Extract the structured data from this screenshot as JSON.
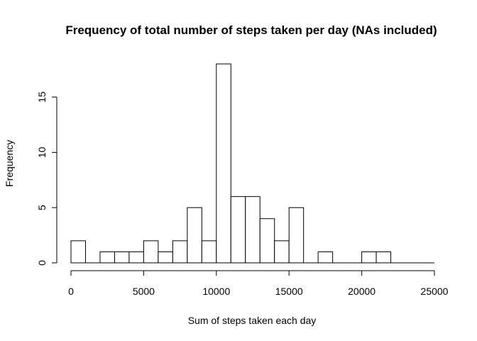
{
  "chart_data": {
    "type": "bar",
    "title": "Frequency of total number of steps taken per day (NAs included)",
    "xlabel": "Sum of steps taken each day",
    "ylabel": "Frequency",
    "xlim": [
      0,
      25000
    ],
    "ylim": [
      0,
      18
    ],
    "x_ticks": [
      0,
      5000,
      10000,
      15000,
      20000,
      25000
    ],
    "y_ticks": [
      0,
      5,
      10,
      15
    ],
    "bin_width": 1000,
    "bins": [
      {
        "x0": 0,
        "x1": 1000,
        "count": 2
      },
      {
        "x0": 1000,
        "x1": 2000,
        "count": 0
      },
      {
        "x0": 2000,
        "x1": 3000,
        "count": 1
      },
      {
        "x0": 3000,
        "x1": 4000,
        "count": 1
      },
      {
        "x0": 4000,
        "x1": 5000,
        "count": 1
      },
      {
        "x0": 5000,
        "x1": 6000,
        "count": 2
      },
      {
        "x0": 6000,
        "x1": 7000,
        "count": 1
      },
      {
        "x0": 7000,
        "x1": 8000,
        "count": 2
      },
      {
        "x0": 8000,
        "x1": 9000,
        "count": 5
      },
      {
        "x0": 9000,
        "x1": 10000,
        "count": 2
      },
      {
        "x0": 10000,
        "x1": 11000,
        "count": 18
      },
      {
        "x0": 11000,
        "x1": 12000,
        "count": 6
      },
      {
        "x0": 12000,
        "x1": 13000,
        "count": 6
      },
      {
        "x0": 13000,
        "x1": 14000,
        "count": 4
      },
      {
        "x0": 14000,
        "x1": 15000,
        "count": 2
      },
      {
        "x0": 15000,
        "x1": 16000,
        "count": 5
      },
      {
        "x0": 16000,
        "x1": 17000,
        "count": 0
      },
      {
        "x0": 17000,
        "x1": 18000,
        "count": 1
      },
      {
        "x0": 18000,
        "x1": 19000,
        "count": 0
      },
      {
        "x0": 19000,
        "x1": 20000,
        "count": 0
      },
      {
        "x0": 20000,
        "x1": 21000,
        "count": 1
      },
      {
        "x0": 21000,
        "x1": 22000,
        "count": 1
      },
      {
        "x0": 22000,
        "x1": 23000,
        "count": 0
      },
      {
        "x0": 23000,
        "x1": 24000,
        "count": 0
      },
      {
        "x0": 24000,
        "x1": 25000,
        "count": 0
      }
    ],
    "grid": false,
    "legend": "none"
  }
}
